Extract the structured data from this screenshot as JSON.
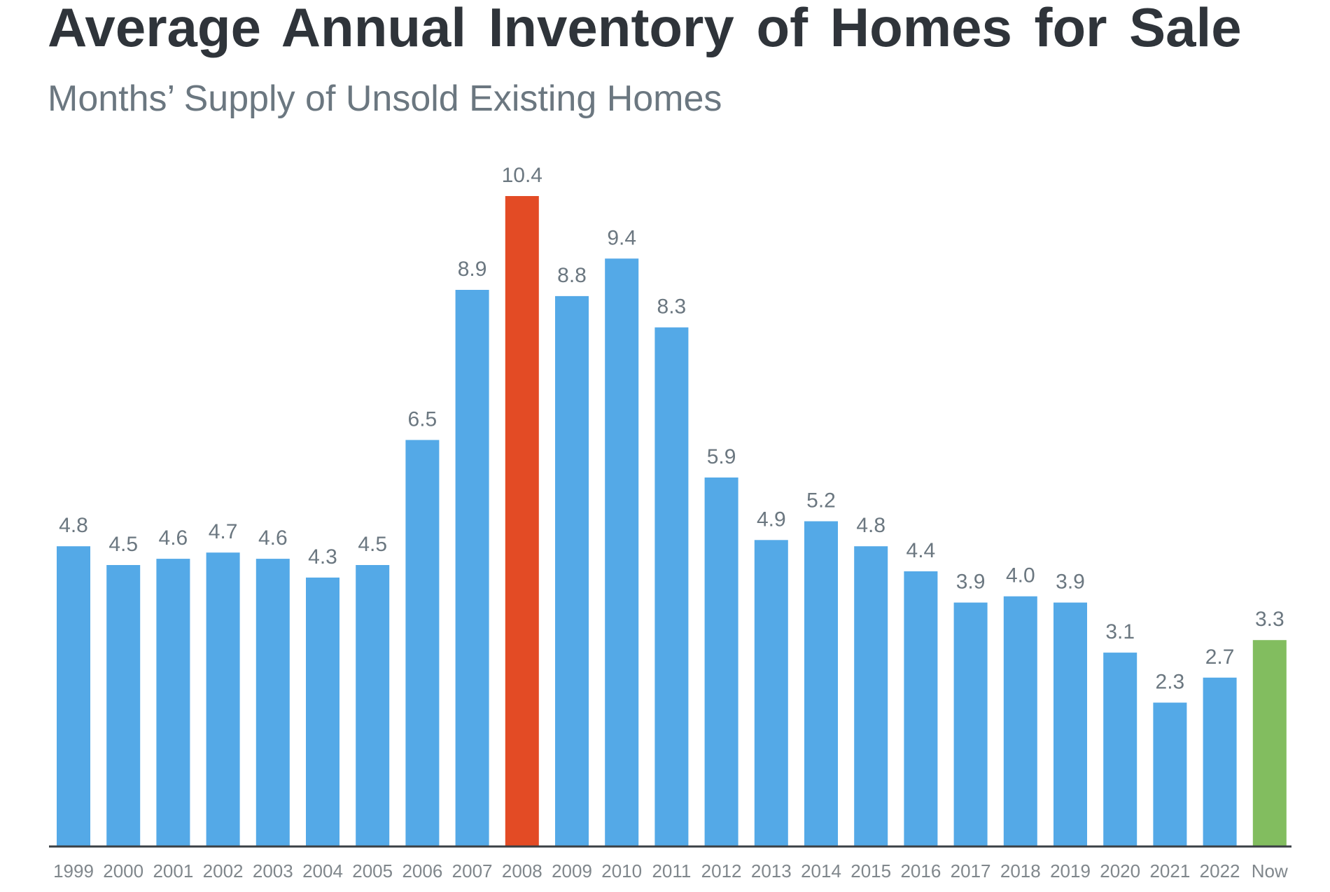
{
  "chart_data": {
    "type": "bar",
    "title": "Average Annual Inventory of Homes for Sale",
    "subtitle": "Months’ Supply of Unsold Existing Homes",
    "xlabel": "",
    "ylabel": "",
    "categories": [
      "1999",
      "2000",
      "2001",
      "2002",
      "2003",
      "2004",
      "2005",
      "2006",
      "2007",
      "2008",
      "2009",
      "2010",
      "2011",
      "2012",
      "2013",
      "2014",
      "2015",
      "2016",
      "2017",
      "2018",
      "2019",
      "2020",
      "2021",
      "2022",
      "Now"
    ],
    "values": [
      4.8,
      4.5,
      4.6,
      4.7,
      4.6,
      4.3,
      4.5,
      6.5,
      8.9,
      10.4,
      8.8,
      9.4,
      8.3,
      5.9,
      4.9,
      5.2,
      4.8,
      4.4,
      3.9,
      4.0,
      3.9,
      3.1,
      2.3,
      2.7,
      3.3
    ],
    "value_labels": [
      "4.8",
      "4.5",
      "4.6",
      "4.7",
      "4.6",
      "4.3",
      "4.5",
      "6.5",
      "8.9",
      "10.4",
      "8.8",
      "9.4",
      "8.3",
      "5.9",
      "4.9",
      "5.2",
      "4.8",
      "4.4",
      "3.9",
      "4.0",
      "3.9",
      "3.1",
      "2.3",
      "2.7",
      "3.3"
    ],
    "ylim": [
      0,
      10.4
    ],
    "grid": false,
    "legend": "none",
    "colors": {
      "default": "#54a9e7",
      "highlight_2008": "#e34b25",
      "highlight_now": "#82bd5f",
      "axis": "#3a3f44"
    },
    "bar_colors": [
      "#54a9e7",
      "#54a9e7",
      "#54a9e7",
      "#54a9e7",
      "#54a9e7",
      "#54a9e7",
      "#54a9e7",
      "#54a9e7",
      "#54a9e7",
      "#e34b25",
      "#54a9e7",
      "#54a9e7",
      "#54a9e7",
      "#54a9e7",
      "#54a9e7",
      "#54a9e7",
      "#54a9e7",
      "#54a9e7",
      "#54a9e7",
      "#54a9e7",
      "#54a9e7",
      "#54a9e7",
      "#54a9e7",
      "#54a9e7",
      "#82bd5f"
    ]
  }
}
